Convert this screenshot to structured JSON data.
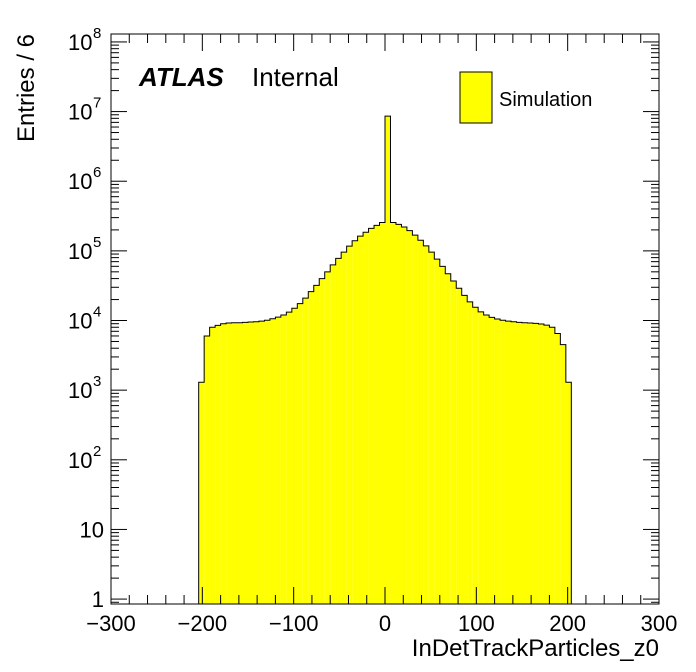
{
  "chart_data": {
    "type": "histogram",
    "title": "",
    "xlabel": "InDetTrackParticles_z0",
    "ylabel": "Entries / 6",
    "xlim": [
      -300,
      300
    ],
    "ylim": [
      0.85,
      130000000
    ],
    "yscale": "log",
    "bin_width": 6,
    "x_ticks": [
      "−300",
      "−200",
      "−100",
      "0",
      "100",
      "200",
      "300"
    ],
    "y_ticks": [
      {
        "value": 1,
        "mantissa": "1",
        "exponent": ""
      },
      {
        "value": 10,
        "mantissa": "10",
        "exponent": ""
      },
      {
        "value": 100,
        "mantissa": "10",
        "exponent": "2"
      },
      {
        "value": 1000,
        "mantissa": "10",
        "exponent": "3"
      },
      {
        "value": 10000,
        "mantissa": "10",
        "exponent": "4"
      },
      {
        "value": 100000,
        "mantissa": "10",
        "exponent": "5"
      },
      {
        "value": 1000000,
        "mantissa": "10",
        "exponent": "6"
      },
      {
        "value": 10000000,
        "mantissa": "10",
        "exponent": "7"
      },
      {
        "value": 100000000,
        "mantissa": "10",
        "exponent": "8"
      }
    ],
    "series": [
      {
        "name": "Simulation",
        "color": "#ffff00",
        "bins": [
          [
            -204,
            -198,
            1300
          ],
          [
            -198,
            -192,
            6000
          ],
          [
            -192,
            -186,
            8000
          ],
          [
            -186,
            -180,
            8500
          ],
          [
            -180,
            -174,
            9000
          ],
          [
            -174,
            -168,
            9200
          ],
          [
            -168,
            -162,
            9300
          ],
          [
            -162,
            -156,
            9300
          ],
          [
            -156,
            -150,
            9400
          ],
          [
            -150,
            -144,
            9500
          ],
          [
            -144,
            -138,
            9600
          ],
          [
            -138,
            -132,
            9800
          ],
          [
            -132,
            -126,
            10100
          ],
          [
            -126,
            -120,
            10600
          ],
          [
            -120,
            -114,
            11200
          ],
          [
            -114,
            -108,
            12000
          ],
          [
            -108,
            -102,
            13200
          ],
          [
            -102,
            -96,
            15000
          ],
          [
            -96,
            -90,
            17500
          ],
          [
            -90,
            -84,
            21000
          ],
          [
            -84,
            -78,
            26000
          ],
          [
            -78,
            -72,
            32000
          ],
          [
            -72,
            -66,
            40000
          ],
          [
            -66,
            -60,
            50000
          ],
          [
            -60,
            -54,
            63000
          ],
          [
            -54,
            -48,
            78000
          ],
          [
            -48,
            -42,
            96000
          ],
          [
            -42,
            -36,
            117000
          ],
          [
            -36,
            -30,
            140000
          ],
          [
            -30,
            -24,
            163000
          ],
          [
            -24,
            -18,
            185000
          ],
          [
            -18,
            -12,
            210000
          ],
          [
            -12,
            -6,
            232000
          ],
          [
            -6,
            0,
            255000
          ],
          [
            0,
            6,
            8600000
          ],
          [
            6,
            12,
            255000
          ],
          [
            12,
            18,
            240000
          ],
          [
            18,
            24,
            220000
          ],
          [
            24,
            30,
            195000
          ],
          [
            30,
            36,
            168000
          ],
          [
            36,
            42,
            142000
          ],
          [
            42,
            48,
            118000
          ],
          [
            48,
            54,
            96000
          ],
          [
            54,
            60,
            76000
          ],
          [
            60,
            66,
            60000
          ],
          [
            66,
            72,
            47000
          ],
          [
            72,
            78,
            37000
          ],
          [
            78,
            84,
            29000
          ],
          [
            84,
            90,
            23000
          ],
          [
            90,
            96,
            18500
          ],
          [
            96,
            102,
            15500
          ],
          [
            102,
            108,
            13300
          ],
          [
            108,
            114,
            12000
          ],
          [
            114,
            120,
            11100
          ],
          [
            120,
            126,
            10500
          ],
          [
            126,
            132,
            10100
          ],
          [
            132,
            138,
            9800
          ],
          [
            138,
            144,
            9600
          ],
          [
            144,
            150,
            9400
          ],
          [
            150,
            156,
            9300
          ],
          [
            156,
            162,
            9200
          ],
          [
            162,
            168,
            9100
          ],
          [
            168,
            174,
            8900
          ],
          [
            174,
            180,
            8600
          ],
          [
            180,
            186,
            8000
          ],
          [
            186,
            192,
            6500
          ],
          [
            192,
            198,
            4500
          ],
          [
            198,
            204,
            1300
          ]
        ]
      }
    ],
    "annotations": {
      "experiment": "ATLAS",
      "status": "Internal"
    },
    "legend": {
      "placement": "top-right",
      "entries": [
        "Simulation"
      ]
    }
  }
}
